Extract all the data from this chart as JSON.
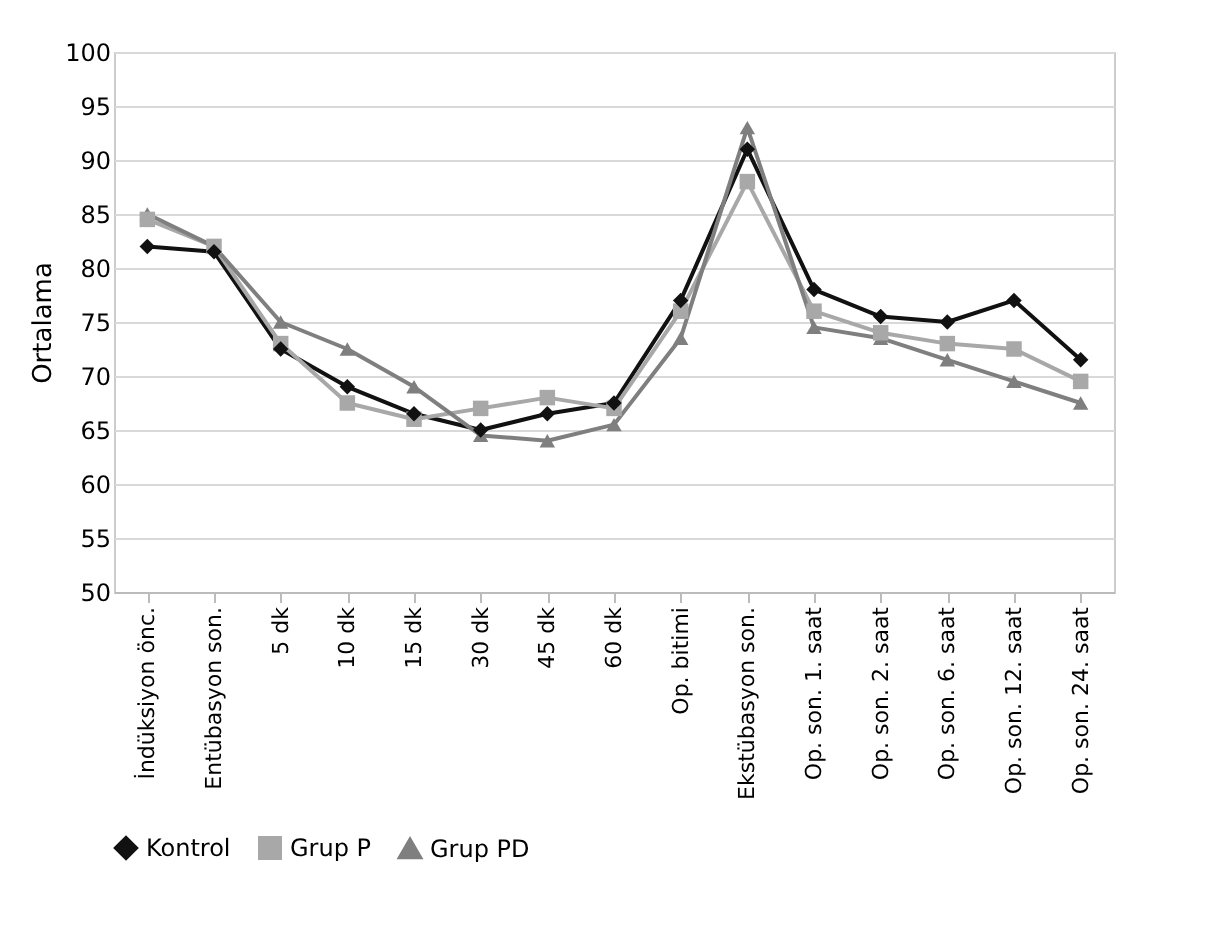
{
  "chart_data": {
    "type": "line",
    "ylabel": "Ortalama",
    "categories": [
      "İndüksiyon önc.",
      "Entübasyon son.",
      "5 dk",
      "10 dk",
      "15 dk",
      "30 dk",
      "45 dk",
      "60 dk",
      "Op. bitimi",
      "Ekstübasyon son.",
      "Op. son. 1. saat",
      "Op. son. 2. saat",
      "Op. son. 6. saat",
      "Op. son. 12. saat",
      "Op. son. 24. saat"
    ],
    "series": [
      {
        "name": "Kontrol",
        "color": "#111111",
        "marker": "diamond",
        "values": [
          82,
          81.5,
          72.5,
          69,
          66.5,
          65,
          66.5,
          67.5,
          77,
          91,
          78,
          75.5,
          75,
          77,
          71.5
        ]
      },
      {
        "name": "Grup P",
        "color": "#a8a8a8",
        "marker": "square",
        "values": [
          84.5,
          82,
          73,
          67.5,
          66,
          67,
          68,
          67,
          76,
          88,
          76,
          74,
          73,
          72.5,
          69.5
        ]
      },
      {
        "name": "Grup PD",
        "color": "#7f7f7f",
        "marker": "triangle",
        "values": [
          85,
          82,
          75,
          72.5,
          69,
          64.5,
          64,
          65.5,
          73.5,
          93,
          74.5,
          73.5,
          71.5,
          69.5,
          67.5
        ]
      }
    ],
    "ylim": [
      50,
      100
    ],
    "yticks": [
      50,
      55,
      60,
      65,
      70,
      75,
      80,
      85,
      90,
      95,
      100
    ],
    "grid": "y",
    "legend": "bottom",
    "line_style": "solid"
  }
}
